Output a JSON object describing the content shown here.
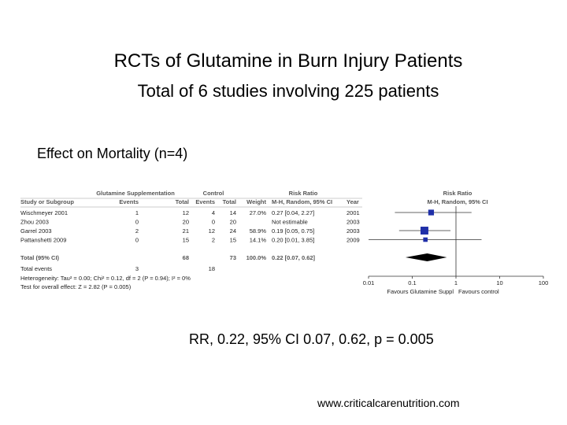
{
  "slide": {
    "title": "RCTs of Glutamine in Burn Injury Patients",
    "subtitle": "Total of 6 studies involving 225 patients",
    "heading": "Effect on Mortality (n=4)",
    "result": "RR, 0.22, 95% CI 0.07, 0.62, p = 0.005",
    "source": "www.criticalcarenutrition.com"
  },
  "forest": {
    "group_headers": {
      "treatment": "Glutamine Supplementation",
      "control": "Control",
      "ratio": "Risk Ratio",
      "plot": "Risk Ratio"
    },
    "columns": {
      "study": "Study or Subgroup",
      "e1": "Events",
      "n1": "Total",
      "e2": "Events",
      "n2": "Total",
      "weight": "Weight",
      "ci": "M-H, Random, 95% CI",
      "year": "Year",
      "plot": "M-H, Random, 95% CI"
    },
    "rows": [
      {
        "study": "Wischmeyer 2001",
        "e1": 1,
        "n1": 12,
        "e2": 4,
        "n2": 14,
        "weight": {
          "value": 27.0,
          "label": "27.0%"
        },
        "ci": {
          "value": 0.27,
          "low": 0.04,
          "high": 2.27,
          "label": "0.27 [0.04, 2.27]"
        },
        "year": 2001
      },
      {
        "study": "Zhou 2003",
        "e1": 0,
        "n1": 20,
        "e2": 0,
        "n2": 20,
        "ci": {
          "label": "Not estimable"
        },
        "year": 2003
      },
      {
        "study": "Garrel 2003",
        "e1": 2,
        "n1": 21,
        "e2": 12,
        "n2": 24,
        "weight": {
          "value": 58.9,
          "label": "58.9%"
        },
        "ci": {
          "value": 0.19,
          "low": 0.05,
          "high": 0.75,
          "label": "0.19 [0.05, 0.75]"
        },
        "year": 2003
      },
      {
        "study": "Pattanshetti 2009",
        "e1": 0,
        "n1": 15,
        "e2": 2,
        "n2": 15,
        "weight": {
          "value": 14.1,
          "label": "14.1%"
        },
        "ci": {
          "value": 0.2,
          "low": 0.01,
          "high": 3.85,
          "label": "0.20 [0.01, 3.85]"
        },
        "year": 2009
      }
    ],
    "total": {
      "study": "Total (95% CI)",
      "n1": 68,
      "n2": 73,
      "weight": {
        "value": 100.0,
        "label": "100.0%"
      },
      "ci": {
        "value": 0.22,
        "low": 0.07,
        "high": 0.62,
        "label": "0.22 [0.07, 0.62]"
      }
    },
    "events": {
      "study": "Total events",
      "e1": 3,
      "e2": 18
    },
    "heterogeneity": "Heterogeneity: Tau² = 0.00; Chi² = 0.12, df = 2 (P = 0.94); I² = 0%",
    "overall": "Test for overall effect: Z = 2.82 (P = 0.005)",
    "axis": {
      "ticks": [
        0.01,
        0.1,
        1,
        10,
        100
      ],
      "favours_left": "Favours Glutamine Suppl",
      "favours_right": "Favours control"
    }
  }
}
